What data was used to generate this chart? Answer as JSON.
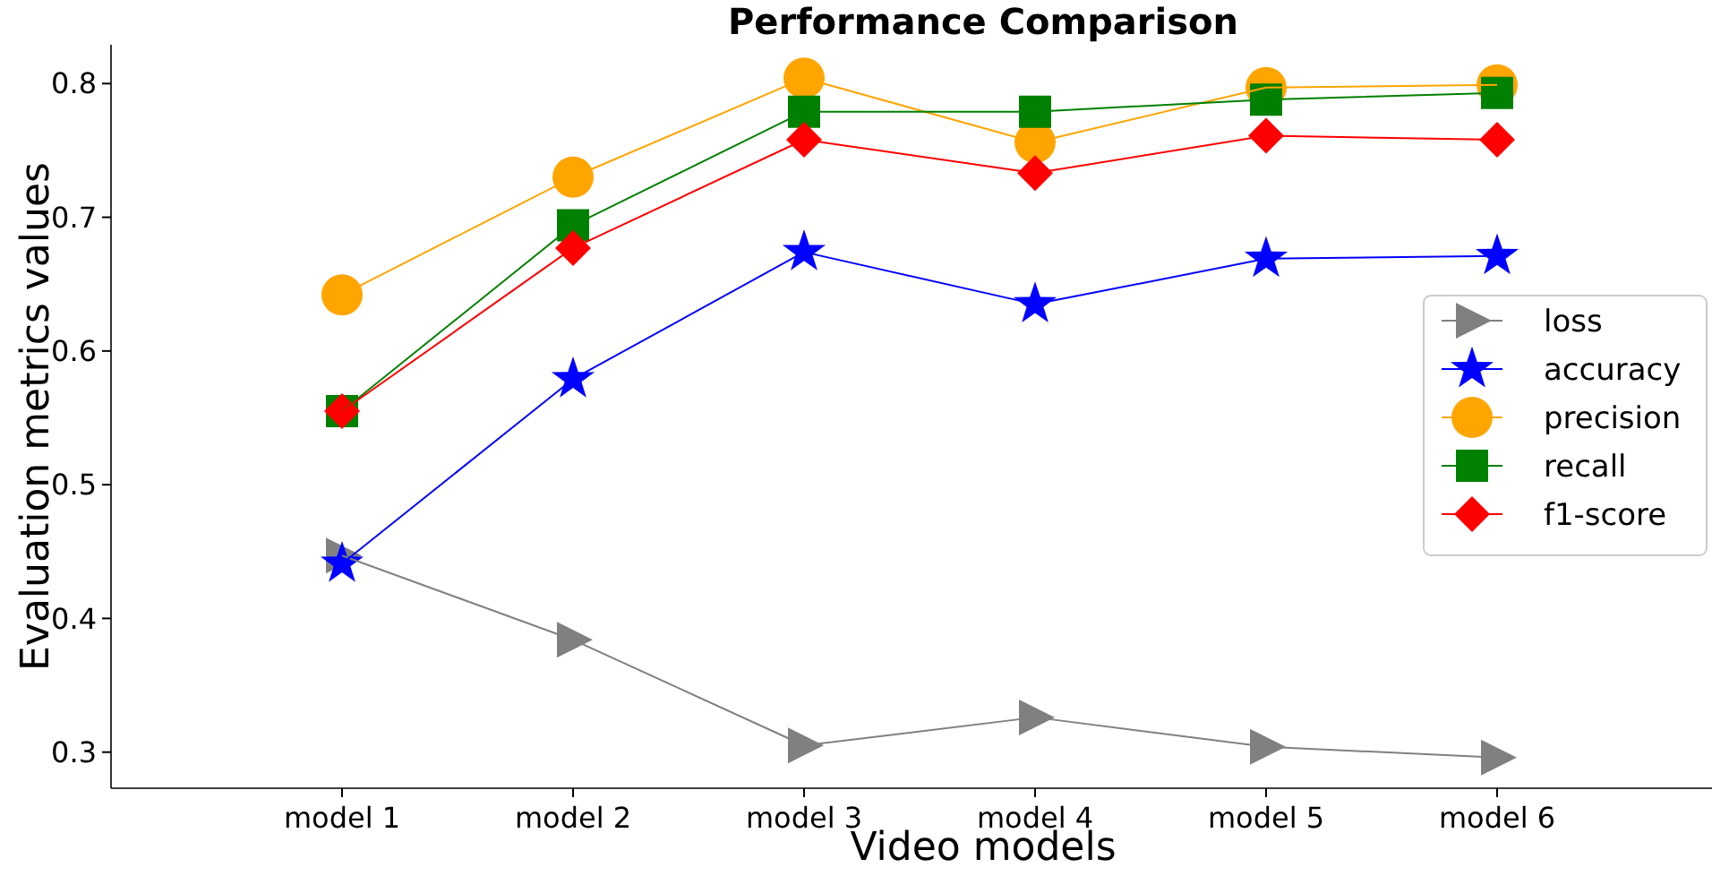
{
  "chart_data": {
    "type": "line",
    "title": "Performance Comparison",
    "xlabel": "Video models",
    "ylabel": "Evaluation metrics values",
    "categories": [
      "model 1",
      "model 2",
      "model 3",
      "model 4",
      "model 5",
      "model 6"
    ],
    "ylim": [
      0.273,
      0.829
    ],
    "yticks": [
      0.3,
      0.4,
      0.5,
      0.6,
      0.7,
      0.8
    ],
    "grid": false,
    "legend": "center right",
    "line_style": "solid",
    "series": [
      {
        "name": "loss",
        "color": "#808080",
        "marker": "triangle",
        "values": [
          0.447,
          0.384,
          0.305,
          0.326,
          0.304,
          0.296
        ]
      },
      {
        "name": "accuracy",
        "color": "#0000ff",
        "marker": "star",
        "values": [
          0.441,
          0.579,
          0.674,
          0.635,
          0.669,
          0.671
        ]
      },
      {
        "name": "precision",
        "color": "#ffa500",
        "marker": "circle",
        "values": [
          0.642,
          0.73,
          0.804,
          0.756,
          0.797,
          0.799
        ]
      },
      {
        "name": "recall",
        "color": "#008000",
        "marker": "square",
        "values": [
          0.555,
          0.694,
          0.779,
          0.779,
          0.788,
          0.793
        ]
      },
      {
        "name": "f1-score",
        "color": "#ff0000",
        "marker": "diamond",
        "values": [
          0.555,
          0.677,
          0.758,
          0.733,
          0.761,
          0.758
        ]
      }
    ]
  }
}
